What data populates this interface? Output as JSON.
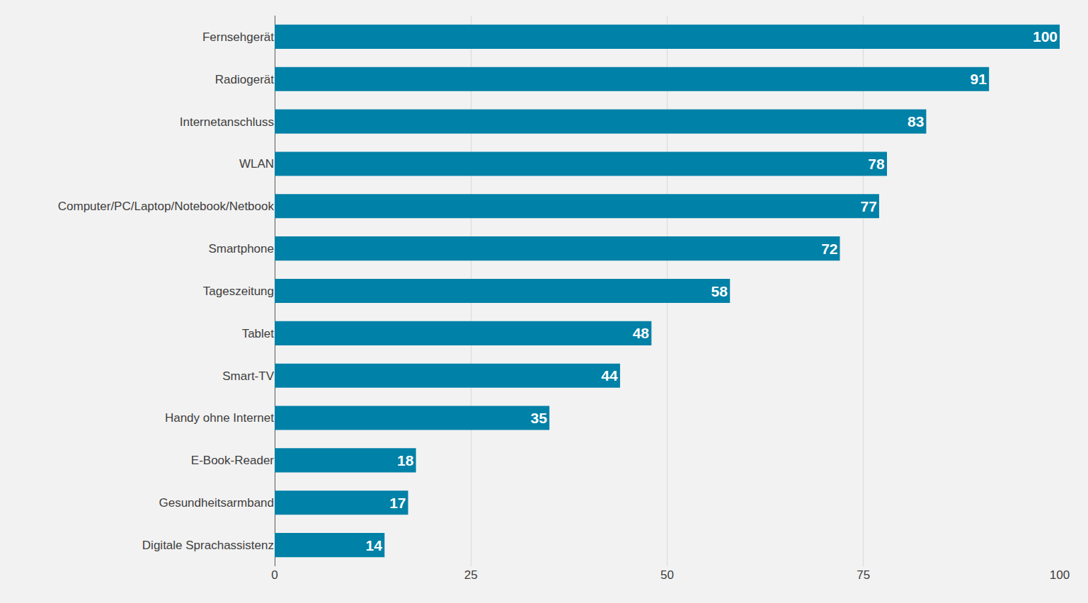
{
  "chart_data": {
    "type": "bar",
    "orientation": "horizontal",
    "categories": [
      "Fernsehgerät",
      "Radiogerät",
      "Internetanschluss",
      "WLAN",
      "Computer/PC/Laptop/Notebook/Netbook",
      "Smartphone",
      "Tageszeitung",
      "Tablet",
      "Smart-TV",
      "Handy ohne Internet",
      "E-Book-Reader",
      "Gesundheitsarmband",
      "Digitale Sprachassistenz"
    ],
    "values": [
      100,
      91,
      83,
      78,
      77,
      72,
      58,
      48,
      44,
      35,
      18,
      17,
      14
    ],
    "color": "#0081a7",
    "xlim": [
      0,
      100
    ],
    "xticks": [
      0,
      25,
      50,
      75,
      100
    ],
    "grid": true,
    "data_labels": true
  }
}
